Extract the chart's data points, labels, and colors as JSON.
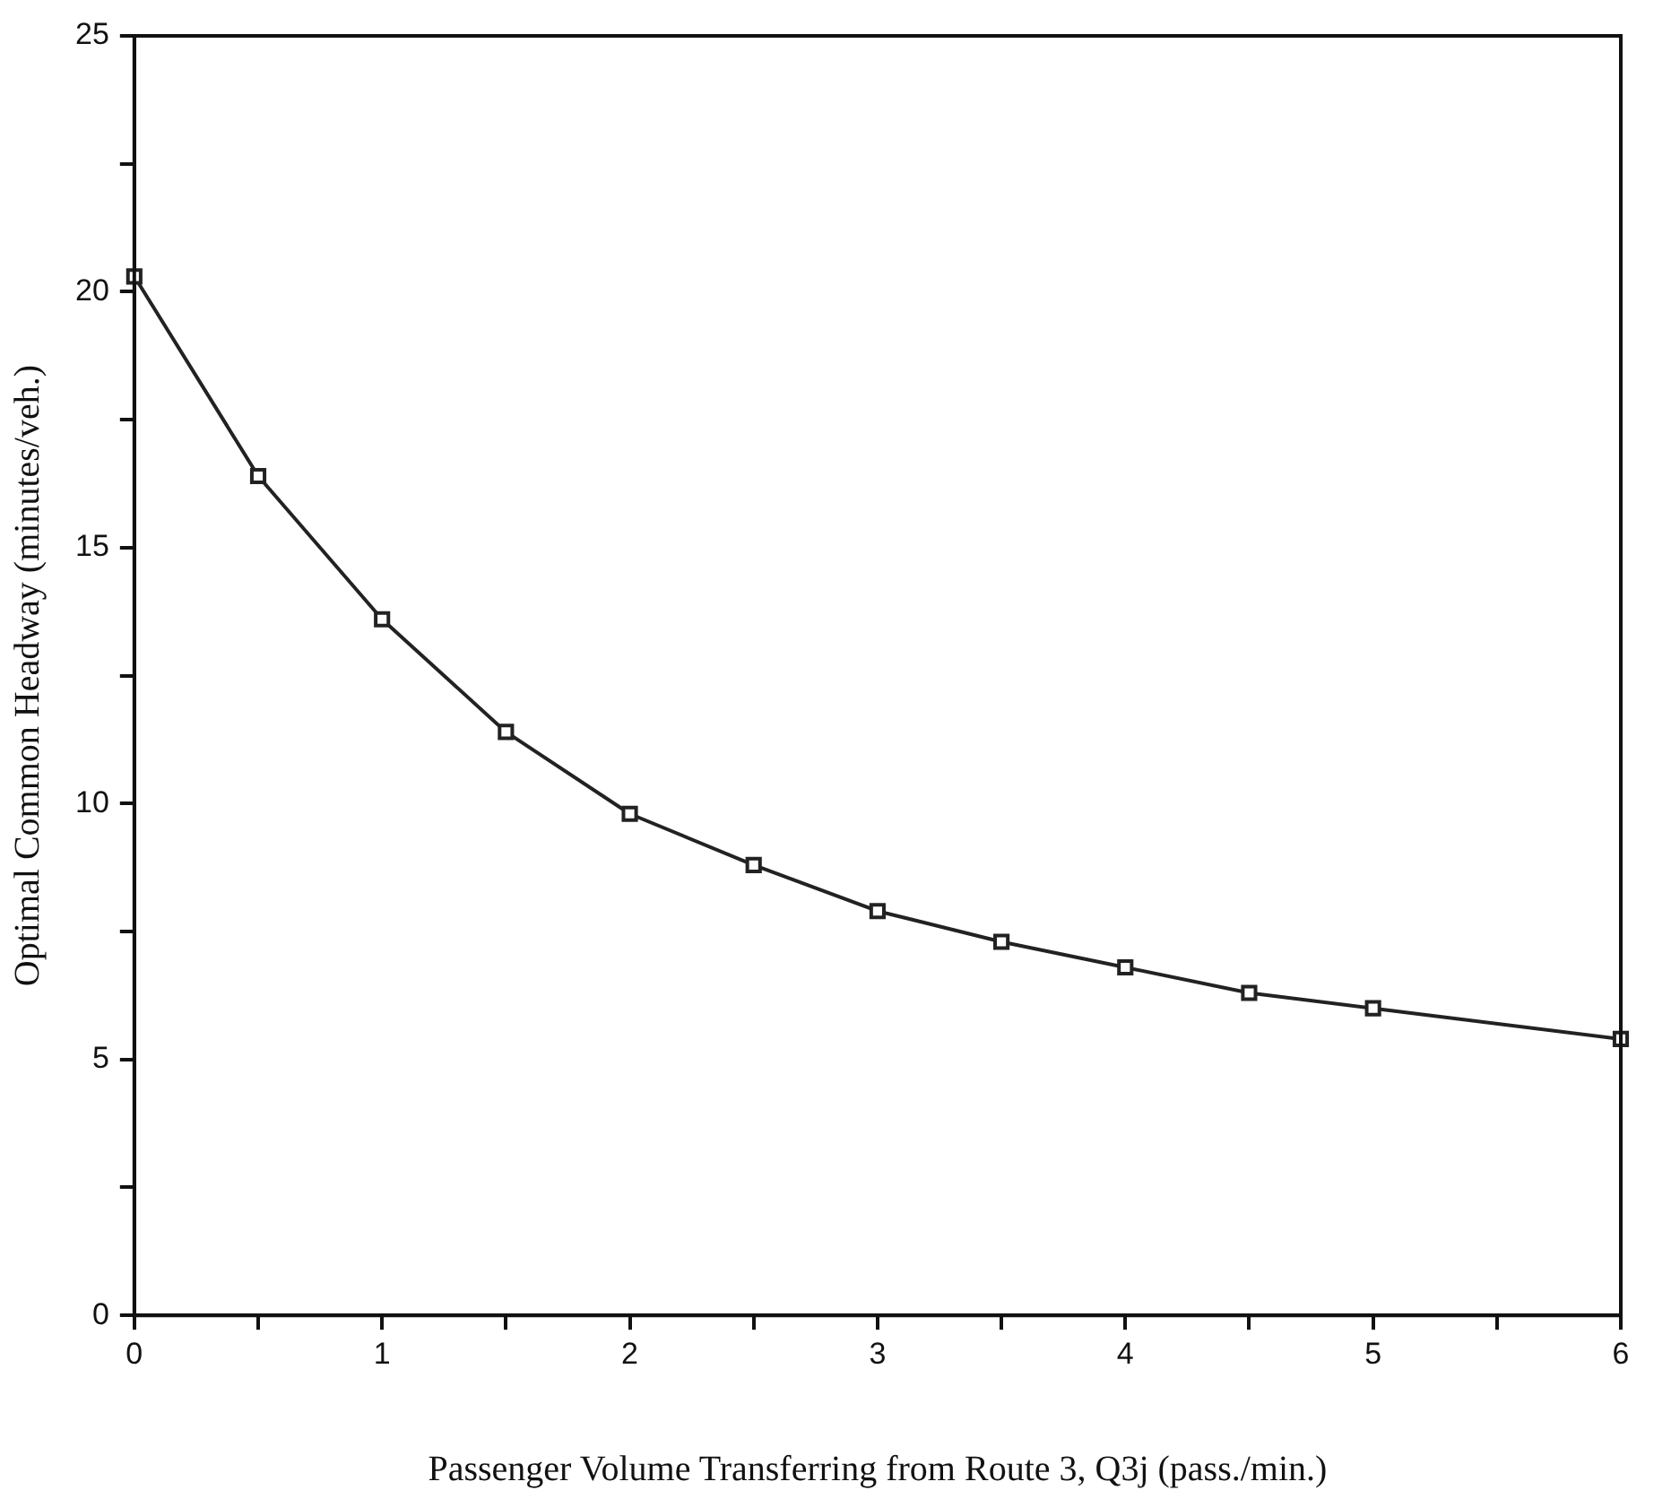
{
  "chart_data": {
    "type": "line",
    "xlabel": "Passenger Volume Transferring from Route 3, Q3j (pass./min.)",
    "ylabel": "Optimal Common Headway (minutes/veh.)",
    "x": [
      0,
      0.5,
      1,
      1.5,
      2,
      2.5,
      3,
      3.5,
      4,
      4.5,
      5,
      6
    ],
    "series": [
      {
        "color": "#222222",
        "values": [
          20.3,
          16.4,
          13.6,
          11.4,
          9.8,
          8.8,
          7.9,
          7.3,
          6.8,
          6.3,
          6.0,
          5.4
        ]
      }
    ],
    "xlim": [
      0,
      6
    ],
    "xticks": [
      0,
      {
        "value": 0.5,
        "label": null
      },
      1,
      {
        "value": 1.5,
        "label": null
      },
      2,
      {
        "value": 2.5,
        "label": null
      },
      3,
      {
        "value": 3.5,
        "label": null
      },
      4,
      {
        "value": 4.5,
        "label": null
      },
      5,
      {
        "value": 5.5,
        "label": null
      },
      6
    ],
    "ylim": [
      0,
      25
    ],
    "yticks": [
      0,
      {
        "value": 2.5,
        "label": null
      },
      5,
      {
        "value": 7.5,
        "label": null
      },
      10,
      {
        "value": 12.5,
        "label": null
      },
      15,
      {
        "value": 17.5,
        "label": null
      },
      20,
      {
        "value": 22.5,
        "label": null
      },
      25
    ],
    "grid": false,
    "legend": false,
    "marker": "square",
    "line_style": "solid"
  }
}
